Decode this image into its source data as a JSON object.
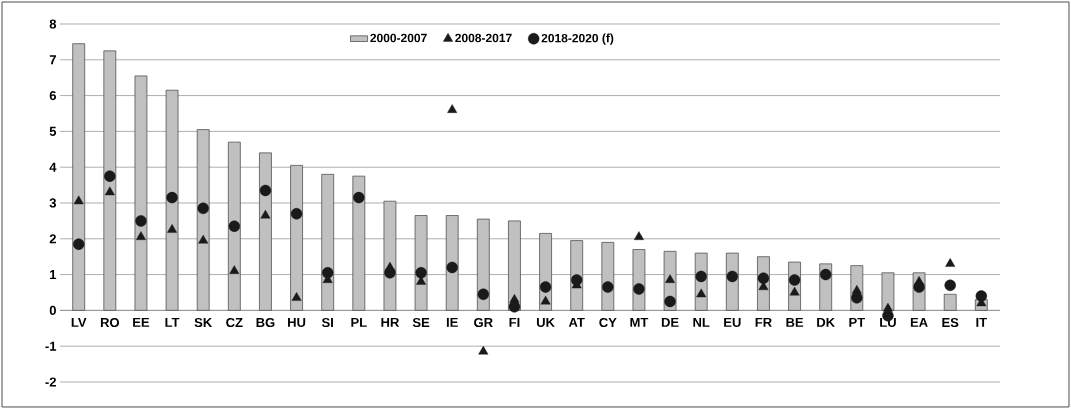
{
  "chart_data": {
    "type": "bar",
    "categories": [
      "LV",
      "RO",
      "EE",
      "LT",
      "SK",
      "CZ",
      "BG",
      "HU",
      "SI",
      "PL",
      "HR",
      "SE",
      "IE",
      "GR",
      "FI",
      "UK",
      "AT",
      "CY",
      "MT",
      "DE",
      "NL",
      "EU",
      "FR",
      "BE",
      "DK",
      "PT",
      "LU",
      "EA",
      "ES",
      "IT"
    ],
    "series": [
      {
        "name": "2000-2007",
        "color": "#c0c0c0",
        "values": [
          7.45,
          7.25,
          6.55,
          6.15,
          5.05,
          4.7,
          4.4,
          4.05,
          3.8,
          3.75,
          3.05,
          2.65,
          2.65,
          2.55,
          2.5,
          2.15,
          1.95,
          1.9,
          1.7,
          1.65,
          1.6,
          1.6,
          1.5,
          1.35,
          1.3,
          1.25,
          1.05,
          1.05,
          0.45,
          0.3
        ]
      },
      {
        "name": "2008-2017",
        "type": "scatter",
        "marker": "triangle",
        "color": "#1a1a1a",
        "values": [
          3.05,
          3.3,
          2.05,
          2.25,
          1.95,
          1.1,
          2.65,
          0.35,
          0.85,
          null,
          1.2,
          0.8,
          5.6,
          -1.15,
          0.3,
          0.25,
          0.7,
          null,
          2.05,
          0.85,
          0.45,
          null,
          0.65,
          0.5,
          null,
          0.55,
          0.05,
          0.8,
          1.3,
          0.2
        ]
      },
      {
        "name": "2018-2020 (f)",
        "type": "scatter",
        "marker": "circle",
        "color": "#1a1a1a",
        "values": [
          1.85,
          3.75,
          2.5,
          3.15,
          2.85,
          2.35,
          3.35,
          2.7,
          1.05,
          3.15,
          1.05,
          1.05,
          1.2,
          0.45,
          0.1,
          0.65,
          0.85,
          0.65,
          0.6,
          0.25,
          0.95,
          0.95,
          0.9,
          0.85,
          1.0,
          0.35,
          -0.15,
          0.65,
          0.7,
          0.4
        ]
      }
    ],
    "ylim": [
      -2,
      8
    ],
    "yticks": [
      -2,
      -1,
      0,
      1,
      2,
      3,
      4,
      5,
      6,
      7,
      8
    ],
    "grid": "y",
    "legend": "top"
  }
}
